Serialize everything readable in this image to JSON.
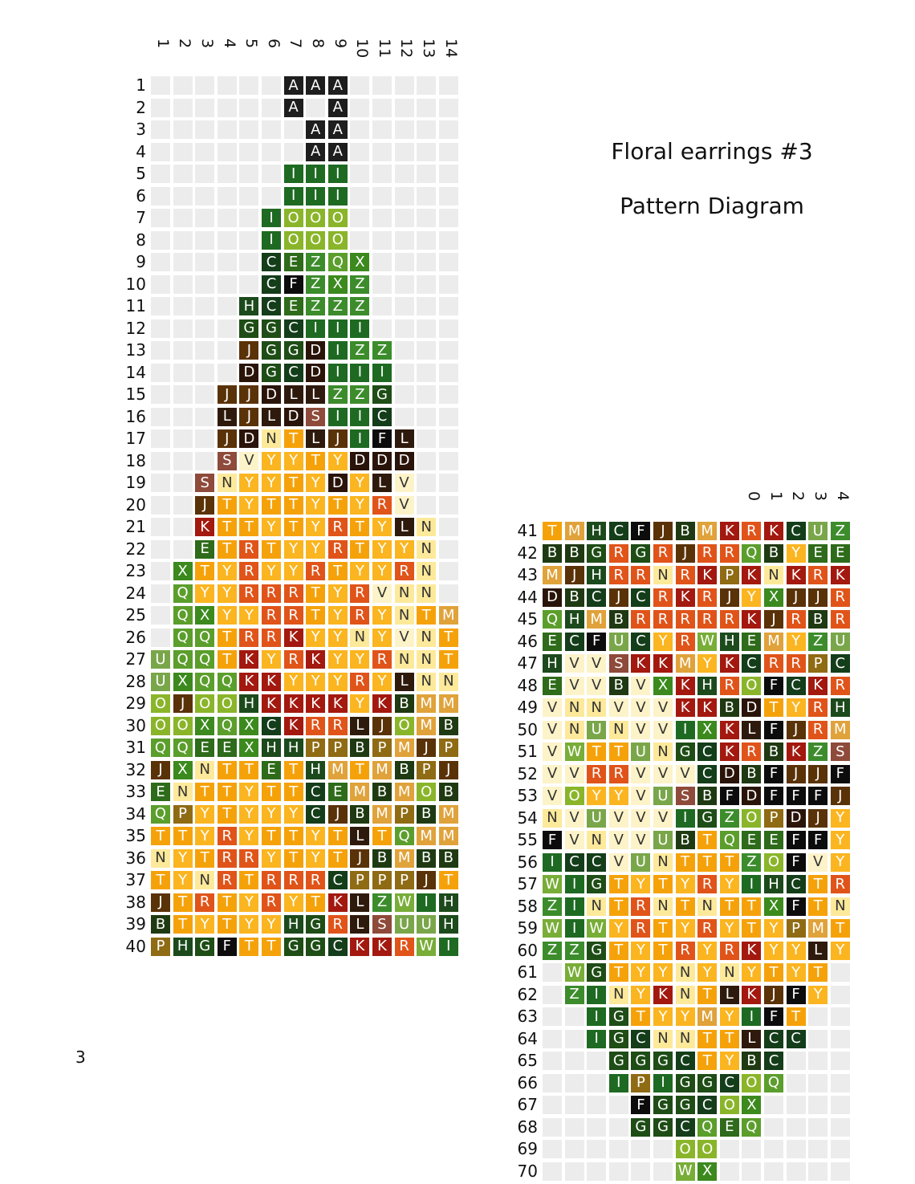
{
  "title": "Floral earrings #3",
  "subtitle": "Pattern Diagram",
  "page_number": "3",
  "colors": {
    "A": "#1e1e1e",
    "B": "#1f3a12",
    "C": "#143d1a",
    "D": "#2a1409",
    "E": "#2e6b1a",
    "F": "#0c0c0c",
    "G": "#1e4d16",
    "H": "#1c4a1c",
    "I": "#1e6a22",
    "J": "#5a3208",
    "K": "#a3190f",
    "L": "#2e1a0c",
    "M": "#e0a23a",
    "N": "#fde99a",
    "O": "#8ab52a",
    "P": "#8f6b14",
    "Q": "#5b9e2c",
    "R": "#e0541a",
    "S": "#8e4a3a",
    "T": "#f5a20a",
    "U": "#7aa64a",
    "V": "#fdf3c8",
    "W": "#78ad38",
    "X": "#3c8a1e",
    "Y": "#fbb520",
    "Z": "#3c8c2c"
  },
  "dark_text": [
    "N",
    "V"
  ],
  "left_grid": {
    "column_numbers": [
      "1",
      "2",
      "3",
      "4",
      "5",
      "6",
      "7",
      "8",
      "9",
      "10",
      "11",
      "12",
      "13",
      "14"
    ],
    "rows": [
      {
        "label": "1",
        "start": 6,
        "beads": "AAA"
      },
      {
        "label": "2",
        "start": 6,
        "beads": "A A"
      },
      {
        "label": "3",
        "start": 6,
        "beads": " AA"
      },
      {
        "label": "4",
        "start": 6,
        "beads": " AA"
      },
      {
        "label": "5",
        "start": 6,
        "beads": "III"
      },
      {
        "label": "6",
        "start": 6,
        "beads": "III"
      },
      {
        "label": "7",
        "start": 5,
        "beads": "IOOO"
      },
      {
        "label": "8",
        "start": 5,
        "beads": "IOOO"
      },
      {
        "label": "9",
        "start": 5,
        "beads": "CEZQX"
      },
      {
        "label": "10",
        "start": 5,
        "beads": "CFZXZ"
      },
      {
        "label": "11",
        "start": 4,
        "beads": "HCEZZZ"
      },
      {
        "label": "12",
        "start": 4,
        "beads": "GGCIII"
      },
      {
        "label": "13",
        "start": 4,
        "beads": "JGGDIZZ"
      },
      {
        "label": "14",
        "start": 4,
        "beads": "DGCDIII"
      },
      {
        "label": "15",
        "start": 3,
        "beads": "JJDLLZZG"
      },
      {
        "label": "16",
        "start": 3,
        "beads": "LJLDSIIC"
      },
      {
        "label": "17",
        "start": 3,
        "beads": "JDNTLJIFL"
      },
      {
        "label": "18",
        "start": 3,
        "beads": "SVYYTYDDD"
      },
      {
        "label": "19",
        "start": 2,
        "beads": "SNYYTYDYLV"
      },
      {
        "label": "20",
        "start": 2,
        "beads": "JTYTTYTYRV"
      },
      {
        "label": "21",
        "start": 2,
        "beads": "KTTYTYRTYLN"
      },
      {
        "label": "22",
        "start": 2,
        "beads": "ETRTYYRTYYN"
      },
      {
        "label": "23",
        "start": 1,
        "beads": "XTYRYYRTYYRN"
      },
      {
        "label": "24",
        "start": 1,
        "beads": "QYYRRRTYRVNN"
      },
      {
        "label": "25",
        "start": 1,
        "beads": "QXYYRRTYRYNTM"
      },
      {
        "label": "26",
        "start": 1,
        "beads": "QQTRRKYYNYVNT"
      },
      {
        "label": "27",
        "start": 0,
        "beads": "UQQTKYRKYYRNNT"
      },
      {
        "label": "28",
        "start": 0,
        "beads": "UXQQKKYYYRYLNN"
      },
      {
        "label": "29",
        "start": 0,
        "beads": "OJOOHKKKKYKBMM"
      },
      {
        "label": "30",
        "start": 0,
        "beads": "OOXQXCKRRLJOMB"
      },
      {
        "label": "31",
        "start": 0,
        "beads": "QQEEXHHPPBPMJP"
      },
      {
        "label": "32",
        "start": 0,
        "beads": "JXNTTETHMTMBPJ"
      },
      {
        "label": "33",
        "start": 0,
        "beads": "ENTTYTTCEMBMOB"
      },
      {
        "label": "34",
        "start": 0,
        "beads": "QPYTYYYCJBMPBM"
      },
      {
        "label": "35",
        "start": 0,
        "beads": "TTYRYTTYTLTQMM"
      },
      {
        "label": "36",
        "start": 0,
        "beads": "NYTRRYTYTJBMBB"
      },
      {
        "label": "37",
        "start": 0,
        "beads": "TYNRTRRRCPPPJT"
      },
      {
        "label": "38",
        "start": 0,
        "beads": "JTRTYRYTKLZWIH"
      },
      {
        "label": "39",
        "start": 0,
        "beads": "BTYTYYHGRLSUUH"
      },
      {
        "label": "40",
        "start": 0,
        "beads": "PHGFTTGGCKKRWI"
      }
    ]
  },
  "right_grid": {
    "column_numbers": [
      "",
      "",
      "",
      "",
      "",
      "",
      "",
      "",
      "",
      "0",
      "1",
      "2",
      "3",
      "4"
    ],
    "rows": [
      {
        "label": "41",
        "start": 0,
        "beads": "TMHCFJBMKRKCUZ"
      },
      {
        "label": "42",
        "start": 0,
        "beads": "BBGRGRJRRQBYEE"
      },
      {
        "label": "43",
        "start": 0,
        "beads": "MJHRRNRKPKNKRK"
      },
      {
        "label": "44",
        "start": 0,
        "beads": "DBCJCRKRJYXJJR"
      },
      {
        "label": "45",
        "start": 0,
        "beads": "QHMBRRRRRKJRBR"
      },
      {
        "label": "46",
        "start": 0,
        "beads": "ECFUCYRWHEMYZU"
      },
      {
        "label": "47",
        "start": 0,
        "beads": "HVVSKKMYKCRRPC"
      },
      {
        "label": "48",
        "start": 0,
        "beads": "EVVBVXKHROFCKR"
      },
      {
        "label": "49",
        "start": 0,
        "beads": "VNNVVVKKBDTYRH"
      },
      {
        "label": "50",
        "start": 0,
        "beads": "VNUNVVIXKLFJRM"
      },
      {
        "label": "51",
        "start": 0,
        "beads": "VWTTUNGCKRBKZS"
      },
      {
        "label": "52",
        "start": 0,
        "beads": "VVRRVVVCDBFJJF"
      },
      {
        "label": "53",
        "start": 0,
        "beads": "VOYYVUSBFDFFFJ"
      },
      {
        "label": "54",
        "start": 0,
        "beads": "NVUVVVIGZOPDJY"
      },
      {
        "label": "55",
        "start": 0,
        "beads": "FVNVVUBTQEEFFY"
      },
      {
        "label": "56",
        "start": 0,
        "beads": "ICCVUNTTTZOFVY"
      },
      {
        "label": "57",
        "start": 0,
        "beads": "WIGTYTYRYIHCTR"
      },
      {
        "label": "58",
        "start": 0,
        "beads": "ZINTRNTNTTXFTN"
      },
      {
        "label": "59",
        "start": 0,
        "beads": "WIWYRTYRYTYPMT"
      },
      {
        "label": "60",
        "start": 0,
        "beads": "ZZGTYTRYRKYYLY"
      },
      {
        "label": "61",
        "start": 1,
        "beads": "WGTYYNYNYTYT"
      },
      {
        "label": "62",
        "start": 1,
        "beads": "ZINYKNTLKJFY"
      },
      {
        "label": "63",
        "start": 2,
        "beads": "IGTYYMYIFT"
      },
      {
        "label": "64",
        "start": 2,
        "beads": "IGCNNTTLCC"
      },
      {
        "label": "65",
        "start": 3,
        "beads": "GGGCTYBC"
      },
      {
        "label": "66",
        "start": 3,
        "beads": "IPIGGCOQ"
      },
      {
        "label": "67",
        "start": 4,
        "beads": "FGGCOX"
      },
      {
        "label": "68",
        "start": 4,
        "beads": "GGCQEQ"
      },
      {
        "label": "69",
        "start": 6,
        "beads": "OO"
      },
      {
        "label": "70",
        "start": 6,
        "beads": "WX"
      }
    ]
  }
}
